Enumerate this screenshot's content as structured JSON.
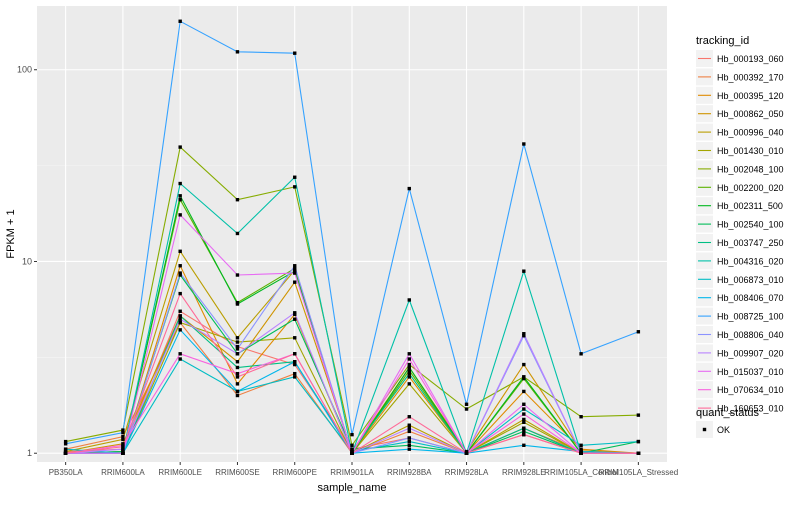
{
  "chart_data": {
    "type": "line",
    "xlabel": "sample_name",
    "ylabel": "FPKM + 1",
    "y_scale": "log10",
    "ylim": [
      0.9,
      215
    ],
    "y_ticks": [
      1,
      10,
      100
    ],
    "y_tick_labels": [
      "1",
      "10",
      "100"
    ],
    "grid": true,
    "legend_position": "right",
    "categories": [
      "PB350LA",
      "RRIM600LA",
      "RRIM600LE",
      "RRIM600SE",
      "RRIM600PE",
      "RRIM901LA",
      "RRIM928BA",
      "RRIM928LA",
      "RRIM928LE",
      "RRIM105LA_Control",
      "RRIM105LA_Stressed"
    ],
    "legend": {
      "color_title": "tracking_id",
      "shape_title": "quant_status",
      "shape_entries": [
        "OK"
      ]
    },
    "series": [
      {
        "name": "Hb_000193_060",
        "color": "#F8766D",
        "values": [
          1.02,
          1.05,
          5.5,
          3.6,
          2.9,
          1.05,
          1.2,
          1.0,
          1.25,
          1.0,
          1.0
        ]
      },
      {
        "name": "Hb_000392_170",
        "color": "#EE8043",
        "values": [
          1.05,
          1.22,
          4.8,
          2.0,
          2.6,
          1.0,
          1.3,
          1.0,
          1.35,
          1.02,
          1.0
        ]
      },
      {
        "name": "Hb_000395_120",
        "color": "#E08B00",
        "values": [
          1.0,
          1.0,
          9.5,
          2.3,
          5.3,
          1.0,
          2.5,
          1.0,
          2.1,
          1.05,
          1.0
        ]
      },
      {
        "name": "Hb_000862_050",
        "color": "#CF9400",
        "values": [
          1.0,
          1.12,
          5.2,
          3.0,
          7.8,
          1.02,
          2.8,
          1.02,
          2.9,
          1.03,
          1.0
        ]
      },
      {
        "name": "Hb_000996_040",
        "color": "#BA9E00",
        "values": [
          1.02,
          1.18,
          11.3,
          4.0,
          9.0,
          1.0,
          1.4,
          1.0,
          1.5,
          1.0,
          1.0
        ]
      },
      {
        "name": "Hb_001430_010",
        "color": "#A3A500",
        "values": [
          1.0,
          1.0,
          4.8,
          3.8,
          4.0,
          1.0,
          2.3,
          1.0,
          1.45,
          1.0,
          1.0
        ]
      },
      {
        "name": "Hb_002048_100",
        "color": "#86AC00",
        "values": [
          1.15,
          1.32,
          39.5,
          21.0,
          24.5,
          1.1,
          2.9,
          1.7,
          2.5,
          1.55,
          1.58
        ]
      },
      {
        "name": "Hb_002200_020",
        "color": "#5BB300",
        "values": [
          1.0,
          1.02,
          21.0,
          6.1,
          9.2,
          1.0,
          2.7,
          1.0,
          2.45,
          1.0,
          1.0
        ]
      },
      {
        "name": "Hb_002311_500",
        "color": "#00B81F",
        "values": [
          1.0,
          1.0,
          22.0,
          6.0,
          8.9,
          1.0,
          2.8,
          1.0,
          2.5,
          1.0,
          1.0
        ]
      },
      {
        "name": "Hb_002540_100",
        "color": "#00BC59",
        "values": [
          1.0,
          1.02,
          8.5,
          3.3,
          5.0,
          1.05,
          1.1,
          1.0,
          1.3,
          1.0,
          1.15
        ]
      },
      {
        "name": "Hb_003747_250",
        "color": "#00BE84",
        "values": [
          1.0,
          1.0,
          5.2,
          2.8,
          3.0,
          1.02,
          2.6,
          1.0,
          1.35,
          1.0,
          1.0
        ]
      },
      {
        "name": "Hb_004316_020",
        "color": "#00C0A8",
        "values": [
          1.0,
          1.0,
          25.5,
          14.0,
          27.5,
          1.0,
          6.3,
          1.0,
          8.9,
          1.0,
          1.0
        ]
      },
      {
        "name": "Hb_006873_010",
        "color": "#00BDC4",
        "values": [
          1.05,
          1.0,
          3.1,
          2.1,
          2.5,
          1.02,
          1.15,
          1.0,
          1.7,
          1.1,
          1.15
        ]
      },
      {
        "name": "Hb_008406_070",
        "color": "#00B6EB",
        "values": [
          1.0,
          1.0,
          4.4,
          2.1,
          3.0,
          1.0,
          1.05,
          1.0,
          1.1,
          1.02,
          1.0
        ]
      },
      {
        "name": "Hb_008725_100",
        "color": "#35A2FF",
        "values": [
          1.12,
          1.28,
          179.0,
          124.0,
          122.0,
          1.25,
          24.0,
          1.8,
          41.0,
          3.3,
          4.3
        ]
      },
      {
        "name": "Hb_008806_040",
        "color": "#8B93FF",
        "values": [
          1.0,
          1.0,
          8.7,
          3.5,
          9.5,
          1.0,
          1.2,
          1.0,
          4.1,
          1.0,
          1.0
        ]
      },
      {
        "name": "Hb_009907_020",
        "color": "#B983FF",
        "values": [
          1.0,
          1.05,
          5.0,
          3.3,
          5.4,
          1.0,
          1.35,
          1.0,
          4.2,
          1.0,
          1.0
        ]
      },
      {
        "name": "Hb_015037_010",
        "color": "#E76BF3",
        "values": [
          1.0,
          1.0,
          17.5,
          8.5,
          8.7,
          1.0,
          3.3,
          1.0,
          1.8,
          1.0,
          1.0
        ]
      },
      {
        "name": "Hb_070634_010",
        "color": "#F863DF",
        "values": [
          1.0,
          1.1,
          3.3,
          2.6,
          3.3,
          1.0,
          3.1,
          1.0,
          1.6,
          1.0,
          1.0
        ]
      },
      {
        "name": "Hb_160653_010",
        "color": "#FF6A98",
        "values": [
          1.0,
          1.08,
          6.8,
          2.5,
          3.3,
          1.0,
          1.55,
          1.0,
          1.25,
          1.0,
          1.0
        ]
      }
    ]
  }
}
